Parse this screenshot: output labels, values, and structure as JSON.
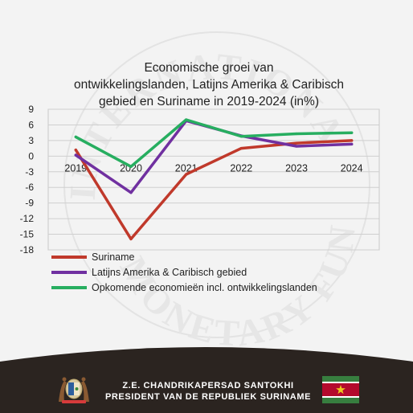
{
  "chart_data": {
    "type": "line",
    "title_lines": [
      "Economische groei  van",
      "ontwikkelingslanden, Latijns Amerika & Caribisch",
      "gebied en Suriname in 2019-2024 (in%)"
    ],
    "x": [
      "2019",
      "2020",
      "2021",
      "2022",
      "2023",
      "2024"
    ],
    "ylim": [
      -18,
      9
    ],
    "yticks": [
      9,
      6,
      3,
      0,
      -3,
      -6,
      -9,
      -12,
      -15,
      -18
    ],
    "grid": true,
    "legend_position": "bottom-left",
    "series": [
      {
        "name": "Suriname",
        "color": "#c0392b",
        "values": [
          1.2,
          -15.9,
          -3.5,
          1.5,
          2.5,
          3.0
        ]
      },
      {
        "name": "Latijns Amerika & Caribisch gebied",
        "color": "#7030a0",
        "values": [
          0.2,
          -7.0,
          6.8,
          3.9,
          1.9,
          2.3
        ]
      },
      {
        "name": "Opkomende economieën incl. ontwikkelingslanden",
        "color": "#27ae60",
        "values": [
          3.7,
          -2.0,
          7.0,
          3.8,
          4.3,
          4.5
        ]
      }
    ]
  },
  "footer": {
    "line1": "Z.E. CHANDRIKAPERSAD SANTOKHI",
    "line2": "PRESIDENT VAN DE REPUBLIEK SURINAME",
    "watermark_text": "INTERNATIONAL MONETARY FUND"
  },
  "colors": {
    "footer_bg": "#2b2420",
    "flag_green": "#377e3f",
    "flag_red": "#b40a2d",
    "flag_star": "#ecc81d"
  }
}
